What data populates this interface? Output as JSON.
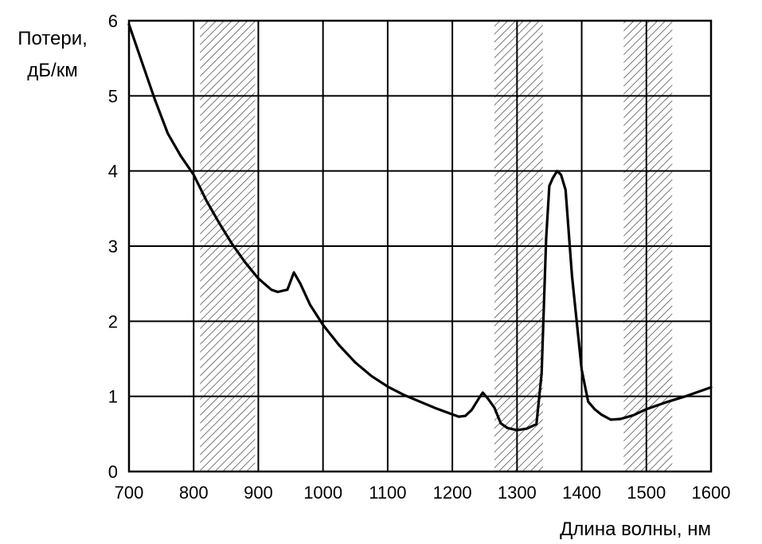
{
  "chart_data": {
    "type": "line",
    "title": "",
    "ylabel_line1": "Потери,",
    "ylabel_line2": "дБ/км",
    "xlabel": "Длина волны, нм",
    "xlim": [
      700,
      1600
    ],
    "ylim": [
      0,
      6
    ],
    "grid": true,
    "legend": "none",
    "x_ticks": [
      700,
      800,
      900,
      1000,
      1100,
      1200,
      1300,
      1400,
      1500,
      1600
    ],
    "y_ticks": [
      0,
      1,
      2,
      3,
      4,
      5,
      6
    ],
    "x_tick_labels": [
      "700",
      "800",
      "900",
      "1000",
      "1100",
      "1200",
      "1300",
      "1400",
      "1500",
      "1600"
    ],
    "y_tick_labels": [
      "0",
      "1",
      "2",
      "3",
      "4",
      "5",
      "6"
    ],
    "hatched_bands": [
      {
        "x_start": 810,
        "x_end": 895
      },
      {
        "x_start": 1265,
        "x_end": 1340
      },
      {
        "x_start": 1465,
        "x_end": 1540
      }
    ],
    "colors": {
      "line": "#000000",
      "grid": "#000000",
      "hatch": "#555555"
    },
    "series": [
      {
        "x": [
          700,
          720,
          740,
          760,
          780,
          800,
          820,
          840,
          860,
          880,
          900,
          920,
          930,
          945,
          955,
          965,
          980,
          1000,
          1025,
          1050,
          1075,
          1100,
          1125,
          1150,
          1175,
          1200,
          1210,
          1220,
          1230,
          1240,
          1247,
          1255,
          1265,
          1275,
          1285,
          1300,
          1315,
          1330,
          1338,
          1345,
          1350,
          1355,
          1362,
          1368,
          1375,
          1385,
          1400,
          1410,
          1420,
          1430,
          1445,
          1460,
          1480,
          1500,
          1530,
          1560,
          1600
        ],
        "y": [
          5.95,
          5.45,
          4.95,
          4.5,
          4.2,
          3.95,
          3.6,
          3.3,
          3.02,
          2.78,
          2.57,
          2.42,
          2.39,
          2.42,
          2.65,
          2.5,
          2.22,
          1.95,
          1.68,
          1.45,
          1.27,
          1.13,
          1.02,
          0.93,
          0.84,
          0.76,
          0.73,
          0.74,
          0.82,
          0.96,
          1.05,
          0.97,
          0.85,
          0.64,
          0.58,
          0.55,
          0.57,
          0.63,
          1.3,
          3.1,
          3.8,
          3.9,
          4.0,
          3.95,
          3.75,
          2.6,
          1.35,
          0.93,
          0.83,
          0.76,
          0.69,
          0.7,
          0.75,
          0.83,
          0.92,
          1.0,
          1.12
        ]
      }
    ]
  }
}
